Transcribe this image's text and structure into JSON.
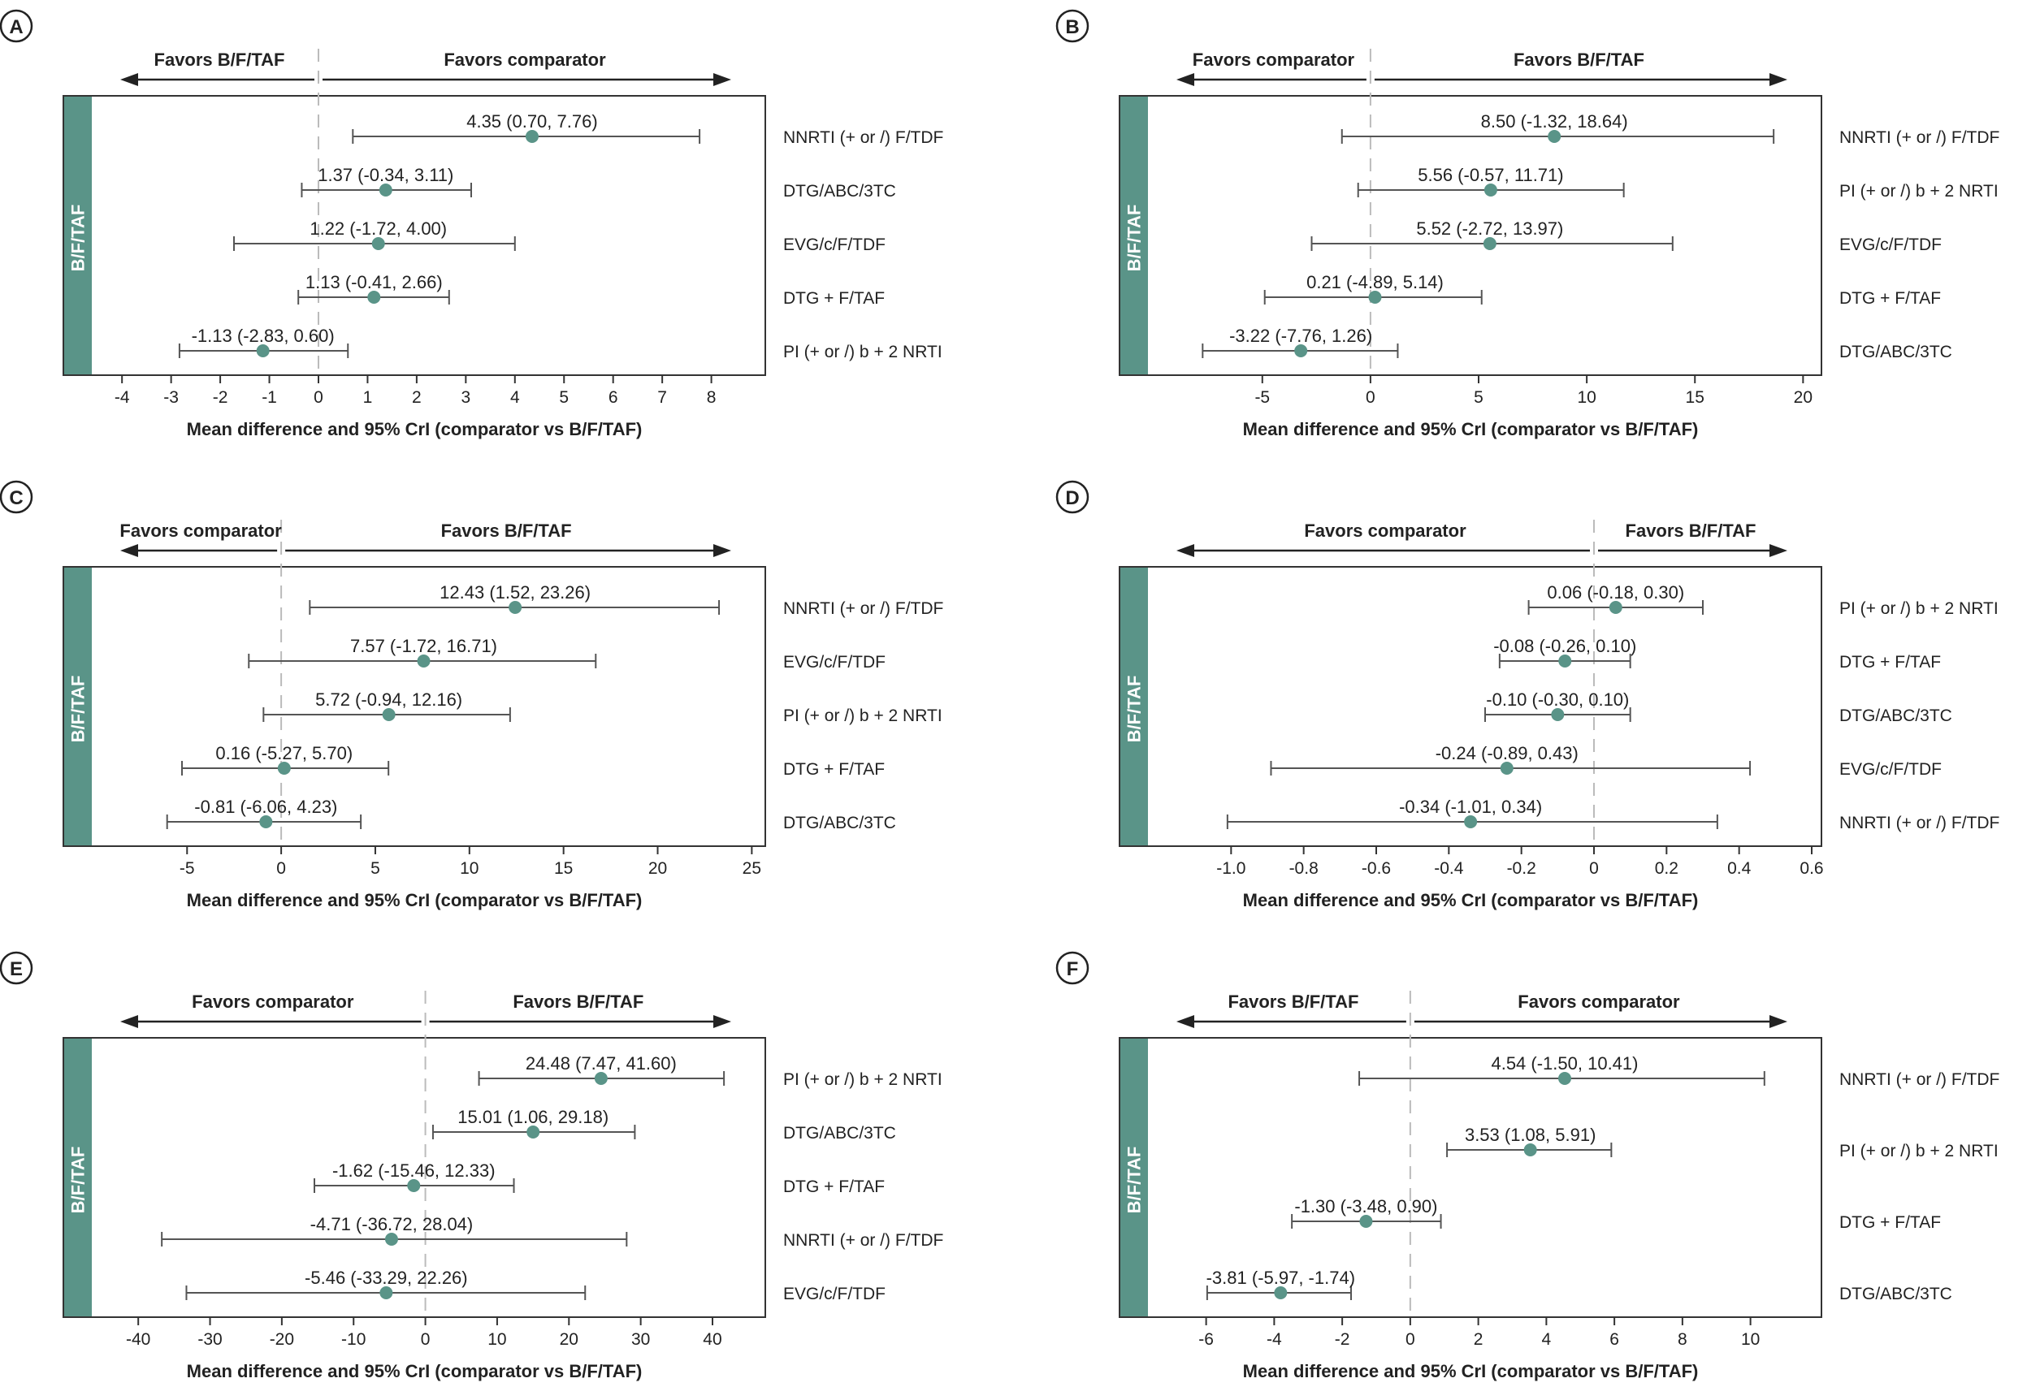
{
  "figure": {
    "side_label": "B/F/TAF",
    "xlabel": "Mean difference and 95% CrI (comparator vs B/F/TAF)",
    "colors": {
      "band": "#5a9488",
      "point": "#5a9488",
      "whisker": "#555555",
      "zero_line": "#bbbbbb"
    }
  },
  "chart_data": [
    {
      "panel": "A",
      "type": "forest",
      "favors_left": "Favors B/F/TAF",
      "favors_right": "Favors comparator",
      "xlim": [
        -4.4,
        8.9
      ],
      "ticks": [
        -4,
        -3,
        -2,
        -1,
        0,
        1,
        2,
        3,
        4,
        5,
        6,
        7,
        8
      ],
      "tick_labels": [
        "-4",
        "-3",
        "-2",
        "-1",
        "0",
        "1",
        "2",
        "3",
        "4",
        "5",
        "6",
        "7",
        "8"
      ],
      "rows": [
        {
          "name": "NNRTI (+ or /) F/TDF",
          "estimate": 4.35,
          "lower": 0.7,
          "upper": 7.76,
          "label": "4.35 (0.70, 7.76)"
        },
        {
          "name": "DTG/ABC/3TC",
          "estimate": 1.37,
          "lower": -0.34,
          "upper": 3.11,
          "label": "1.37 (-0.34, 3.11)"
        },
        {
          "name": "EVG/c/F/TDF",
          "estimate": 1.22,
          "lower": -1.72,
          "upper": 4.0,
          "label": "1.22 (-1.72, 4.00)"
        },
        {
          "name": "DTG + F/TAF",
          "estimate": 1.13,
          "lower": -0.41,
          "upper": 2.66,
          "label": "1.13 (-0.41, 2.66)"
        },
        {
          "name": "PI (+ or /) b + 2 NRTI",
          "estimate": -1.13,
          "lower": -2.83,
          "upper": 0.6,
          "label": "-1.13 (-2.83, 0.60)"
        }
      ]
    },
    {
      "panel": "B",
      "type": "forest",
      "favors_left": "Favors comparator",
      "favors_right": "Favors B/F/TAF",
      "xlim": [
        -9.8,
        20.4
      ],
      "ticks": [
        -5,
        0,
        5,
        10,
        15,
        20
      ],
      "tick_labels": [
        "-5",
        "0",
        "5",
        "10",
        "15",
        "20"
      ],
      "rows": [
        {
          "name": "NNRTI (+ or /) F/TDF",
          "estimate": 8.5,
          "lower": -1.32,
          "upper": 18.64,
          "label": "8.50 (-1.32, 18.64)"
        },
        {
          "name": "PI (+ or /) b + 2 NRTI",
          "estimate": 5.56,
          "lower": -0.57,
          "upper": 11.71,
          "label": "5.56 (-0.57, 11.71)"
        },
        {
          "name": "EVG/c/F/TDF",
          "estimate": 5.52,
          "lower": -2.72,
          "upper": 13.97,
          "label": "5.52 (-2.72, 13.97)"
        },
        {
          "name": "DTG + F/TAF",
          "estimate": 0.21,
          "lower": -4.89,
          "upper": 5.14,
          "label": "0.21 (-4.89, 5.14)"
        },
        {
          "name": "DTG/ABC/3TC",
          "estimate": -3.22,
          "lower": -7.76,
          "upper": 1.26,
          "label": "-3.22 (-7.76, 1.26)"
        }
      ]
    },
    {
      "panel": "C",
      "type": "forest",
      "favors_left": "Favors comparator",
      "favors_right": "Favors B/F/TAF",
      "xlim": [
        -9.5,
        25.2
      ],
      "ticks": [
        -5,
        0,
        5,
        10,
        15,
        20,
        25
      ],
      "tick_labels": [
        "-5",
        "0",
        "5",
        "10",
        "15",
        "20",
        "25"
      ],
      "rows": [
        {
          "name": "NNRTI (+ or /) F/TDF",
          "estimate": 12.43,
          "lower": 1.52,
          "upper": 23.26,
          "label": "12.43 (1.52, 23.26)"
        },
        {
          "name": "EVG/c/F/TDF",
          "estimate": 7.57,
          "lower": -1.72,
          "upper": 16.71,
          "label": "7.57 (-1.72, 16.71)"
        },
        {
          "name": "PI (+ or /) b + 2 NRTI",
          "estimate": 5.72,
          "lower": -0.94,
          "upper": 12.16,
          "label": "5.72 (-0.94, 12.16)"
        },
        {
          "name": "DTG + F/TAF",
          "estimate": 0.16,
          "lower": -5.27,
          "upper": 5.7,
          "label": "0.16 (-5.27, 5.70)"
        },
        {
          "name": "DTG/ABC/3TC",
          "estimate": -0.81,
          "lower": -6.06,
          "upper": 4.23,
          "label": "-0.81 (-6.06, 4.23)"
        }
      ]
    },
    {
      "panel": "D",
      "type": "forest",
      "favors_left": "Favors comparator",
      "favors_right": "Favors B/F/TAF",
      "xlim": [
        -1.2,
        0.6
      ],
      "ticks": [
        -1.0,
        -0.8,
        -0.6,
        -0.4,
        -0.2,
        0,
        0.2,
        0.4,
        0.6
      ],
      "tick_labels": [
        "-1.0",
        "-0.8",
        "-0.6",
        "-0.4",
        "-0.2",
        "0",
        "0.2",
        "0.4",
        "0.6"
      ],
      "rows": [
        {
          "name": "PI (+ or /) b + 2 NRTI",
          "estimate": 0.06,
          "lower": -0.18,
          "upper": 0.3,
          "label": "0.06 (-0.18, 0.30)"
        },
        {
          "name": "DTG + F/TAF",
          "estimate": -0.08,
          "lower": -0.26,
          "upper": 0.1,
          "label": "-0.08 (-0.26, 0.10)"
        },
        {
          "name": "DTG/ABC/3TC",
          "estimate": -0.1,
          "lower": -0.3,
          "upper": 0.1,
          "label": "-0.10 (-0.30, 0.10)"
        },
        {
          "name": "EVG/c/F/TDF",
          "estimate": -0.24,
          "lower": -0.89,
          "upper": 0.43,
          "label": "-0.24 (-0.89, 0.43)"
        },
        {
          "name": "NNRTI (+ or /) F/TDF",
          "estimate": -0.34,
          "lower": -1.01,
          "upper": 0.34,
          "label": "-0.34 (-1.01, 0.34)"
        }
      ]
    },
    {
      "panel": "E",
      "type": "forest",
      "favors_left": "Favors comparator",
      "favors_right": "Favors B/F/TAF",
      "xlim": [
        -45,
        46
      ],
      "ticks": [
        -40,
        -30,
        -20,
        -10,
        0,
        10,
        20,
        30,
        40
      ],
      "tick_labels": [
        "-40",
        "-30",
        "-20",
        "-10",
        "0",
        "10",
        "20",
        "30",
        "40"
      ],
      "rows": [
        {
          "name": "PI (+ or /) b + 2 NRTI",
          "estimate": 24.48,
          "lower": 7.47,
          "upper": 41.6,
          "label": "24.48 (7.47, 41.60)"
        },
        {
          "name": "DTG/ABC/3TC",
          "estimate": 15.01,
          "lower": 1.06,
          "upper": 29.18,
          "label": "15.01 (1.06, 29.18)"
        },
        {
          "name": "DTG + F/TAF",
          "estimate": -1.62,
          "lower": -15.46,
          "upper": 12.33,
          "label": "-1.62 (-15.46, 12.33)"
        },
        {
          "name": "NNRTI (+ or /) F/TDF",
          "estimate": -4.71,
          "lower": -36.72,
          "upper": 28.04,
          "label": "-4.71 (-36.72, 28.04)"
        },
        {
          "name": "EVG/c/F/TDF",
          "estimate": -5.46,
          "lower": -33.29,
          "upper": 22.26,
          "label": "-5.46 (-33.29, 22.26)"
        }
      ]
    },
    {
      "panel": "F",
      "type": "forest",
      "favors_left": "Favors B/F/TAF",
      "favors_right": "Favors comparator",
      "xlim": [
        -7.4,
        11.8
      ],
      "ticks": [
        -6,
        -4,
        -2,
        0,
        2,
        4,
        6,
        8,
        10
      ],
      "tick_labels": [
        "-6",
        "-4",
        "-2",
        "0",
        "2",
        "4",
        "6",
        "8",
        "10"
      ],
      "rows": [
        {
          "name": "NNRTI (+ or /) F/TDF",
          "estimate": 4.54,
          "lower": -1.5,
          "upper": 10.41,
          "label": "4.54 (-1.50, 10.41)"
        },
        {
          "name": "PI (+ or /) b + 2 NRTI",
          "estimate": 3.53,
          "lower": 1.08,
          "upper": 5.91,
          "label": "3.53 (1.08, 5.91)"
        },
        {
          "name": "DTG + F/TAF",
          "estimate": -1.3,
          "lower": -3.48,
          "upper": 0.9,
          "label": "-1.30 (-3.48, 0.90)"
        },
        {
          "name": "DTG/ABC/3TC",
          "estimate": -3.81,
          "lower": -5.97,
          "upper": -1.74,
          "label": "-3.81 (-5.97, -1.74)"
        }
      ]
    }
  ]
}
